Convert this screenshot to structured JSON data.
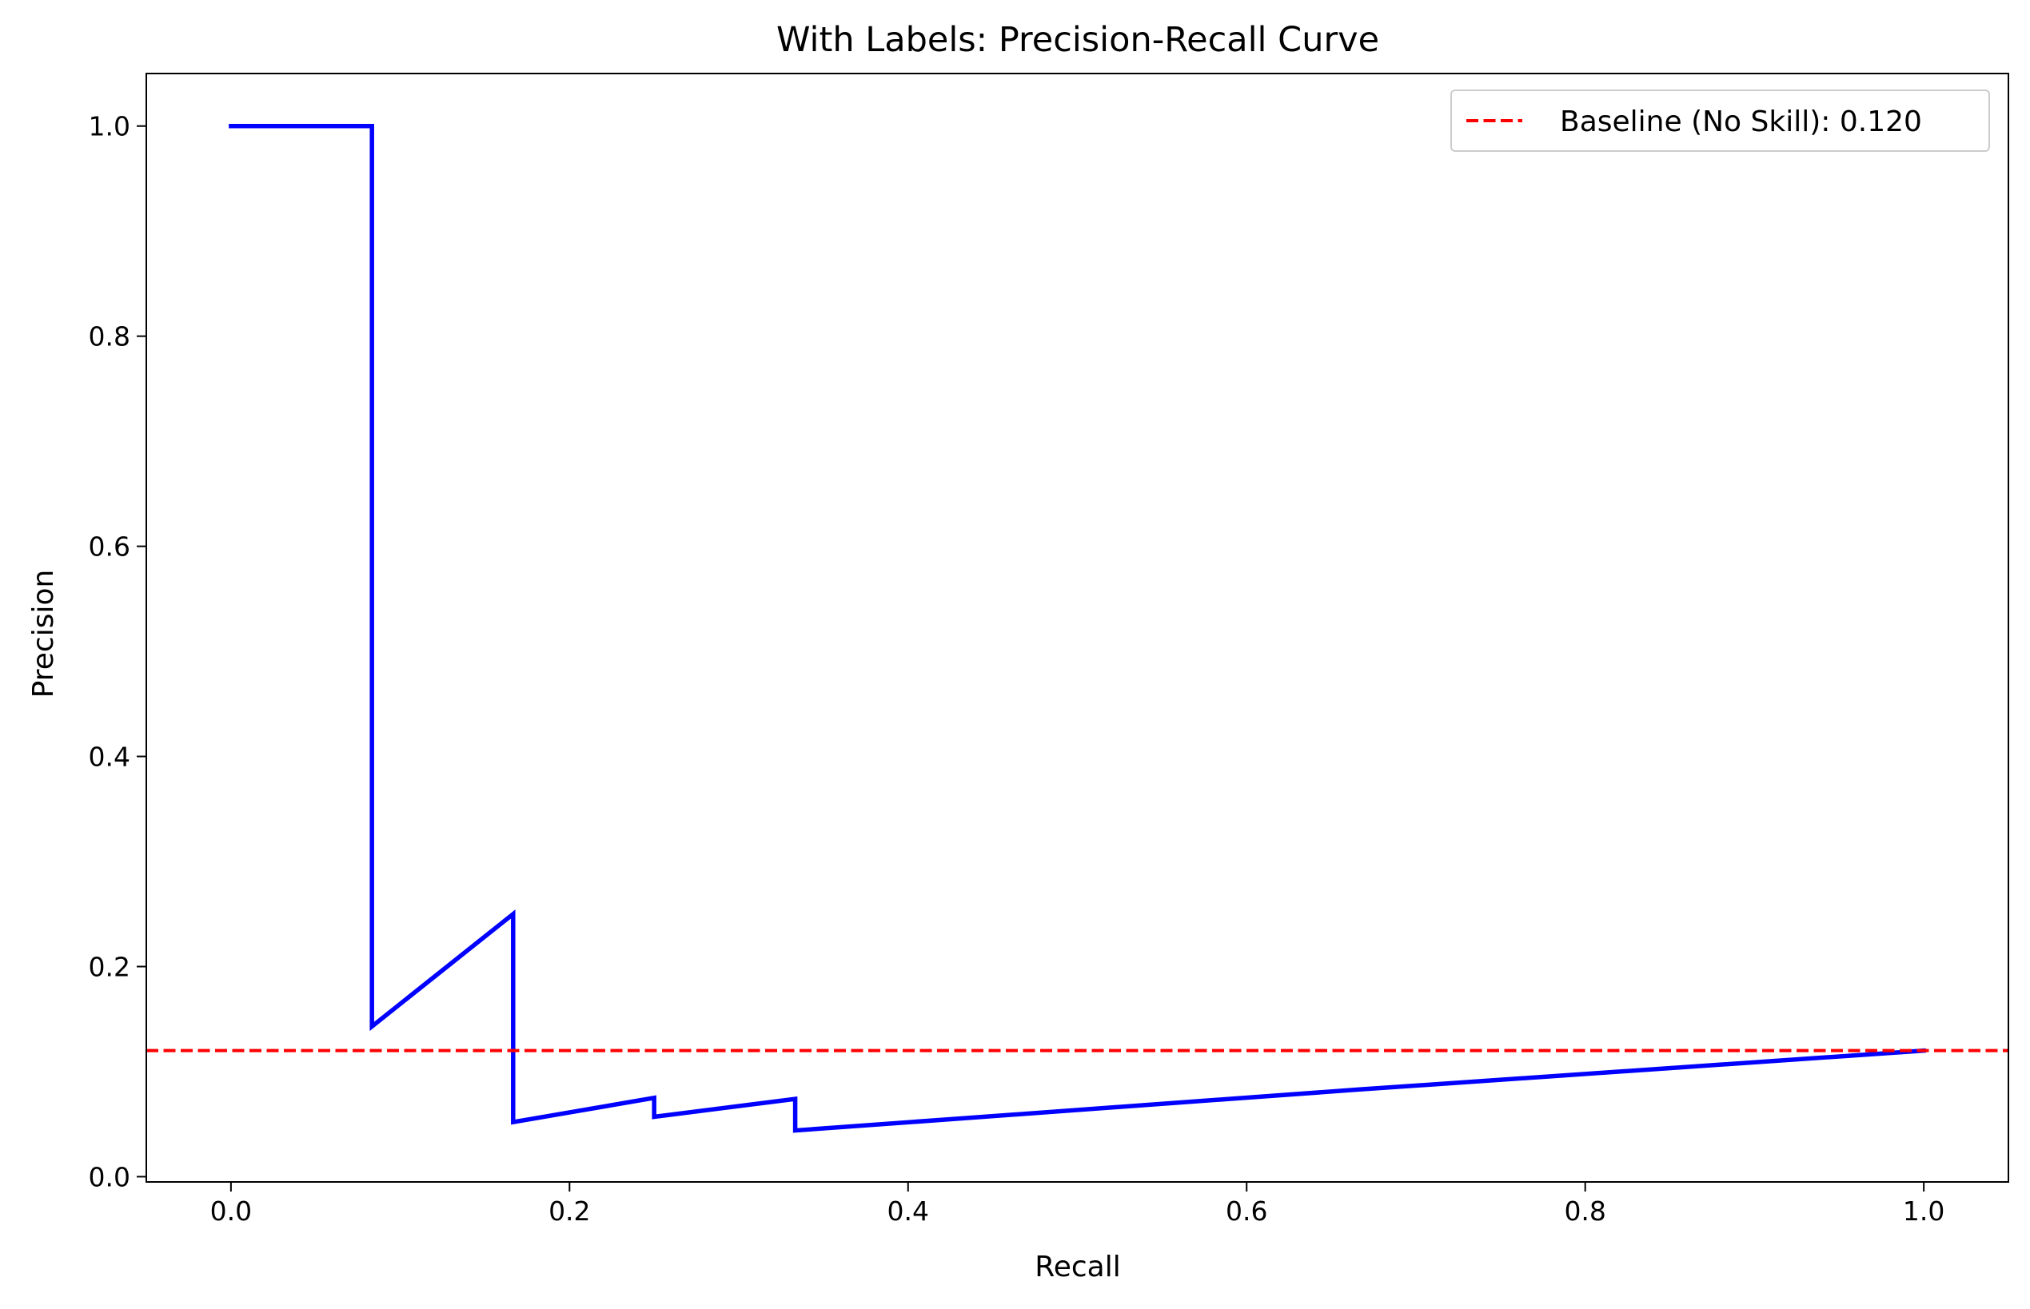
{
  "chart_data": {
    "type": "line",
    "title": "With Labels: Precision-Recall Curve",
    "xlabel": "Recall",
    "ylabel": "Precision",
    "xlim": [
      -0.05,
      1.05
    ],
    "ylim": [
      -0.005,
      1.05
    ],
    "xticks": [
      0.0,
      0.2,
      0.4,
      0.6,
      0.8,
      1.0
    ],
    "xtick_labels": [
      "0.0",
      "0.2",
      "0.4",
      "0.6",
      "0.8",
      "1.0"
    ],
    "yticks": [
      0.0,
      0.2,
      0.4,
      0.6,
      0.8,
      1.0
    ],
    "ytick_labels": [
      "0.0",
      "0.2",
      "0.4",
      "0.6",
      "0.8",
      "1.0"
    ],
    "grid": false,
    "legend_position": "top-right",
    "series": [
      {
        "color": "#0000ff",
        "style": "solid",
        "x": [
          0.0,
          0.0833,
          0.0833,
          0.1667,
          0.1667,
          0.25,
          0.25,
          0.3333,
          0.3333,
          0.6667,
          1.0
        ],
        "y": [
          1.0,
          1.0,
          0.143,
          0.25,
          0.052,
          0.075,
          0.057,
          0.074,
          0.044,
          0.083,
          0.12
        ]
      }
    ],
    "baseline": {
      "name": "Baseline (No Skill): 0.120",
      "value": 0.12,
      "color": "#ff0000",
      "style": "dashed"
    }
  }
}
